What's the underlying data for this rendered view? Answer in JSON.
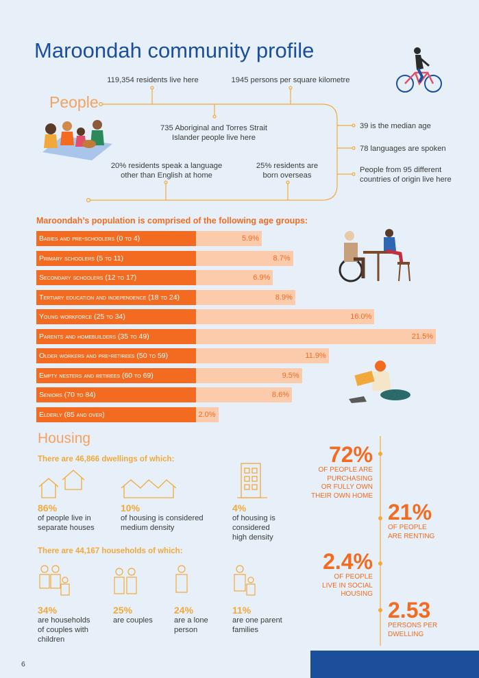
{
  "title": "Maroondah community profile",
  "people": {
    "heading": "People",
    "residents": "119,354 residents live here",
    "density": "1945 persons per square kilometre",
    "aboriginal_line1": "735 Aboriginal and Torres Strait",
    "aboriginal_line2": "Islander people live here",
    "language_line1": "20% residents speak a language",
    "language_line2": "other than English at home",
    "overseas_line1": "25% residents are",
    "overseas_line2": "born overseas",
    "median_age": "39 is the median age",
    "languages": "78 languages are spoken",
    "countries_line1": "People from 95 different",
    "countries_line2": "countries of origin live here"
  },
  "age_groups": {
    "heading": "Maroondah’s population is comprised of the following age groups:",
    "items": [
      {
        "label": "Babies and pre-schoolers (0 to 4)",
        "value": 5.9,
        "value_label": "5.9%"
      },
      {
        "label": "Primary schoolers (5 to 11)",
        "value": 8.7,
        "value_label": "8.7%"
      },
      {
        "label": "Secondary schoolers (12 to 17)",
        "value": 6.9,
        "value_label": "6.9%"
      },
      {
        "label": "Tertiary education and independence (18 to 24)",
        "value": 8.9,
        "value_label": "8.9%"
      },
      {
        "label": "Young workforce (25 to 34)",
        "value": 16.0,
        "value_label": "16.0%"
      },
      {
        "label": "Parents and homebuilders (35 to 49)",
        "value": 21.5,
        "value_label": "21.5%"
      },
      {
        "label": "Older workers and pre-retirees (50 to 59)",
        "value": 11.9,
        "value_label": "11.9%"
      },
      {
        "label": "Empty nesters and retirees (60 to 69)",
        "value": 9.5,
        "value_label": "9.5%"
      },
      {
        "label": "Seniors (70 to 84)",
        "value": 8.6,
        "value_label": "8.6%"
      },
      {
        "label": "Elderly (85 and over)",
        "value": 2.0,
        "value_label": "2.0%"
      }
    ]
  },
  "housing": {
    "heading": "Housing",
    "dwellings_heading": "There are 46,866 dwellings of which:",
    "dwellings": [
      {
        "pct": "86%",
        "line1": "of people live in",
        "line2": "separate houses",
        "line3": ""
      },
      {
        "pct": "10%",
        "line1": "of housing is considered",
        "line2": "medium density",
        "line3": ""
      },
      {
        "pct": "4%",
        "line1": "of housing is",
        "line2": "considered",
        "line3": "high density"
      }
    ],
    "households_heading": "There are 44,167 households of which:",
    "households": [
      {
        "pct": "34%",
        "line1": "are households",
        "line2": "of couples with",
        "line3": "children"
      },
      {
        "pct": "25%",
        "line1": "are couples",
        "line2": "",
        "line3": ""
      },
      {
        "pct": "24%",
        "line1": "are a lone",
        "line2": "person",
        "line3": ""
      },
      {
        "pct": "11%",
        "line1": "are one parent",
        "line2": "families",
        "line3": ""
      }
    ],
    "stats": {
      "own_num": "72%",
      "own_l1": "OF PEOPLE ARE",
      "own_l2": "PURCHASING",
      "own_l3": "OR FULLY OWN",
      "own_l4": "THEIR OWN HOME",
      "rent_num": "21%",
      "rent_l1": "OF PEOPLE",
      "rent_l2": "ARE RENTING",
      "social_num": "2.4%",
      "social_l1": "OF PEOPLE",
      "social_l2": "LIVE IN SOCIAL",
      "social_l3": "HOUSING",
      "persons_num": "2.53",
      "persons_l1": "PERSONS PER",
      "persons_l2": "DWELLING"
    }
  },
  "page_number": "6",
  "colors": {
    "background": "#e7f0f8",
    "title_blue": "#1b4e9b",
    "orange": "#f26b21",
    "light_orange": "#fbcbab",
    "gold": "#f2a93b"
  }
}
